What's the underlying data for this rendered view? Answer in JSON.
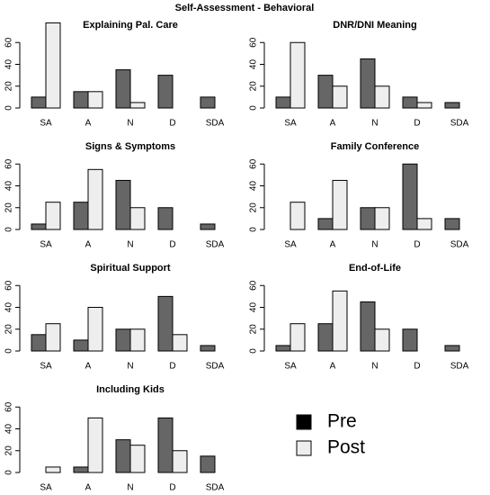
{
  "title": "Self-Assessment - Behavioral",
  "chart_data": [
    {
      "type": "bar",
      "title": "Explaining Pal. Care",
      "categories": [
        "SA",
        "A",
        "N",
        "D",
        "SDA"
      ],
      "series": [
        {
          "name": "Pre",
          "color": "#666666",
          "values": [
            10,
            15,
            35,
            30,
            10
          ]
        },
        {
          "name": "Post",
          "color": "#eeeeee",
          "values": [
            78,
            15,
            5,
            0,
            0
          ]
        }
      ],
      "ylim": [
        0,
        80
      ],
      "yticks": [
        0,
        20,
        40,
        60
      ]
    },
    {
      "type": "bar",
      "title": "DNR/DNI Meaning",
      "categories": [
        "SA",
        "A",
        "N",
        "D",
        "SDA"
      ],
      "series": [
        {
          "name": "Pre",
          "color": "#666666",
          "values": [
            10,
            30,
            45,
            10,
            5
          ]
        },
        {
          "name": "Post",
          "color": "#eeeeee",
          "values": [
            60,
            20,
            20,
            5,
            0
          ]
        }
      ],
      "ylim": [
        0,
        80
      ],
      "yticks": [
        0,
        20,
        40,
        60
      ]
    },
    {
      "type": "bar",
      "title": "Signs & Symptoms",
      "categories": [
        "SA",
        "A",
        "N",
        "D",
        "SDA"
      ],
      "series": [
        {
          "name": "Pre",
          "color": "#666666",
          "values": [
            5,
            25,
            45,
            20,
            5
          ]
        },
        {
          "name": "Post",
          "color": "#eeeeee",
          "values": [
            25,
            55,
            20,
            0,
            0
          ]
        }
      ],
      "ylim": [
        0,
        80
      ],
      "yticks": [
        0,
        20,
        40,
        60
      ]
    },
    {
      "type": "bar",
      "title": "Family Conference",
      "categories": [
        "SA",
        "A",
        "N",
        "D",
        "SDA"
      ],
      "series": [
        {
          "name": "Pre",
          "color": "#666666",
          "values": [
            0,
            10,
            20,
            60,
            10
          ]
        },
        {
          "name": "Post",
          "color": "#eeeeee",
          "values": [
            25,
            45,
            20,
            10,
            0
          ]
        }
      ],
      "ylim": [
        0,
        80
      ],
      "yticks": [
        0,
        20,
        40,
        60
      ]
    },
    {
      "type": "bar",
      "title": "Spiritual Support",
      "categories": [
        "SA",
        "A",
        "N",
        "D",
        "SDA"
      ],
      "series": [
        {
          "name": "Pre",
          "color": "#666666",
          "values": [
            15,
            10,
            20,
            50,
            5
          ]
        },
        {
          "name": "Post",
          "color": "#eeeeee",
          "values": [
            25,
            40,
            20,
            15,
            0
          ]
        }
      ],
      "ylim": [
        0,
        80
      ],
      "yticks": [
        0,
        20,
        40,
        60
      ]
    },
    {
      "type": "bar",
      "title": "End-of-Life",
      "categories": [
        "SA",
        "A",
        "N",
        "D",
        "SDA"
      ],
      "series": [
        {
          "name": "Pre",
          "color": "#666666",
          "values": [
            5,
            25,
            45,
            20,
            5
          ]
        },
        {
          "name": "Post",
          "color": "#eeeeee",
          "values": [
            25,
            55,
            20,
            0,
            0
          ]
        }
      ],
      "ylim": [
        0,
        80
      ],
      "yticks": [
        0,
        20,
        40,
        60
      ]
    },
    {
      "type": "bar",
      "title": "Including Kids",
      "categories": [
        "SA",
        "A",
        "N",
        "D",
        "SDA"
      ],
      "series": [
        {
          "name": "Pre",
          "color": "#666666",
          "values": [
            0,
            5,
            30,
            50,
            15
          ]
        },
        {
          "name": "Post",
          "color": "#eeeeee",
          "values": [
            5,
            50,
            25,
            20,
            0
          ]
        }
      ],
      "ylim": [
        0,
        80
      ],
      "yticks": [
        0,
        20,
        40,
        60
      ]
    }
  ]
}
